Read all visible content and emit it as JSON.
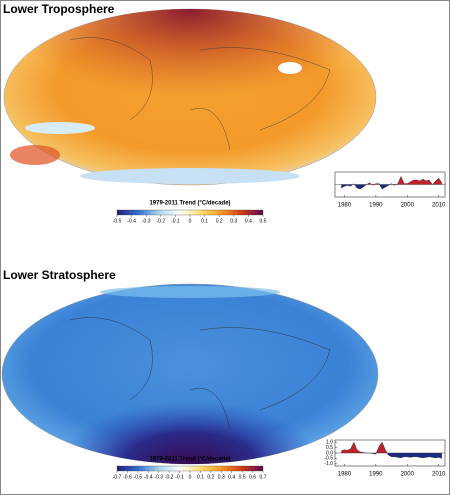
{
  "panels": [
    {
      "title": "Lower Troposphere",
      "colorbar": {
        "title": "1979-2011 Trend (°C/decade)",
        "ticks": [
          -0.5,
          -0.4,
          -0.3,
          -0.2,
          -0.1,
          0,
          0.1,
          0.2,
          0.3,
          0.4,
          0.5
        ],
        "colors": [
          "#2a1a78",
          "#3070d0",
          "#a8d4f0",
          "#ffffff",
          "#ffe070",
          "#f59a20",
          "#d23818",
          "#5a0a50"
        ]
      },
      "inset": {
        "x": [
          1979,
          1980,
          1981,
          1982,
          1983,
          1984,
          1985,
          1986,
          1987,
          1988,
          1989,
          1990,
          1991,
          1992,
          1993,
          1994,
          1995,
          1996,
          1997,
          1998,
          1999,
          2000,
          2001,
          2002,
          2003,
          2004,
          2005,
          2006,
          2007,
          2008,
          2009,
          2010,
          2011
        ],
        "values": [
          -0.2,
          -0.1,
          -0.05,
          -0.1,
          0.05,
          -0.2,
          -0.25,
          -0.15,
          0,
          0.1,
          -0.05,
          0.05,
          0.05,
          -0.25,
          -0.15,
          -0.05,
          0.05,
          -0.05,
          0.05,
          0.45,
          0.05,
          0.05,
          0.15,
          0.25,
          0.25,
          0.2,
          0.3,
          0.2,
          0.25,
          0.0,
          0.2,
          0.35,
          0.1
        ],
        "xlim": [
          1977,
          2012
        ],
        "xticks": [
          1980,
          1990,
          2000,
          2010
        ],
        "ylim": [
          -0.7,
          0.7
        ],
        "positive_color": "#c0222a",
        "negative_color": "#1c2a80"
      }
    },
    {
      "title": "Lower Stratosphere",
      "colorbar": {
        "title": "1979-2011 Trend (°C/decade)",
        "ticks": [
          -0.7,
          -0.6,
          -0.5,
          -0.4,
          -0.3,
          -0.2,
          -0.1,
          0,
          0.1,
          0.2,
          0.3,
          0.4,
          0.5,
          0.6,
          0.7
        ],
        "colors": [
          "#2a1a78",
          "#3070d0",
          "#a8d4f0",
          "#ffffff",
          "#ffe070",
          "#f59a20",
          "#d23818",
          "#5a0a50"
        ]
      },
      "inset": {
        "x": [
          1979,
          1980,
          1981,
          1982,
          1983,
          1984,
          1985,
          1986,
          1987,
          1988,
          1989,
          1990,
          1991,
          1992,
          1993,
          1994,
          1995,
          1996,
          1997,
          1998,
          1999,
          2000,
          2001,
          2002,
          2003,
          2004,
          2005,
          2006,
          2007,
          2008,
          2009,
          2010,
          2011
        ],
        "values": [
          0.2,
          0.3,
          0.25,
          0.4,
          1.0,
          0.3,
          0.1,
          0.05,
          0.0,
          0.0,
          -0.05,
          -0.1,
          0.6,
          1.0,
          0.3,
          -0.2,
          -0.35,
          -0.35,
          -0.4,
          -0.45,
          -0.35,
          -0.35,
          -0.4,
          -0.35,
          -0.35,
          -0.4,
          -0.45,
          -0.4,
          -0.35,
          -0.4,
          -0.45,
          -0.4,
          -0.5
        ],
        "xlim": [
          1977,
          2012
        ],
        "xticks": [
          1980,
          1990,
          2000,
          2010
        ],
        "ylim": [
          -1.2,
          1.2
        ],
        "yticks": [
          {
            "value": 1.0,
            "label": "1.0"
          },
          {
            "value": 0.5,
            "label": "0.5"
          },
          {
            "value": 0.0,
            "label": "0.0"
          },
          {
            "value": -0.5,
            "label": "-0.5"
          },
          {
            "value": -1.0,
            "label": "-1.0"
          }
        ],
        "positive_color": "#c0222a",
        "negative_color": "#1c2a80"
      }
    }
  ]
}
